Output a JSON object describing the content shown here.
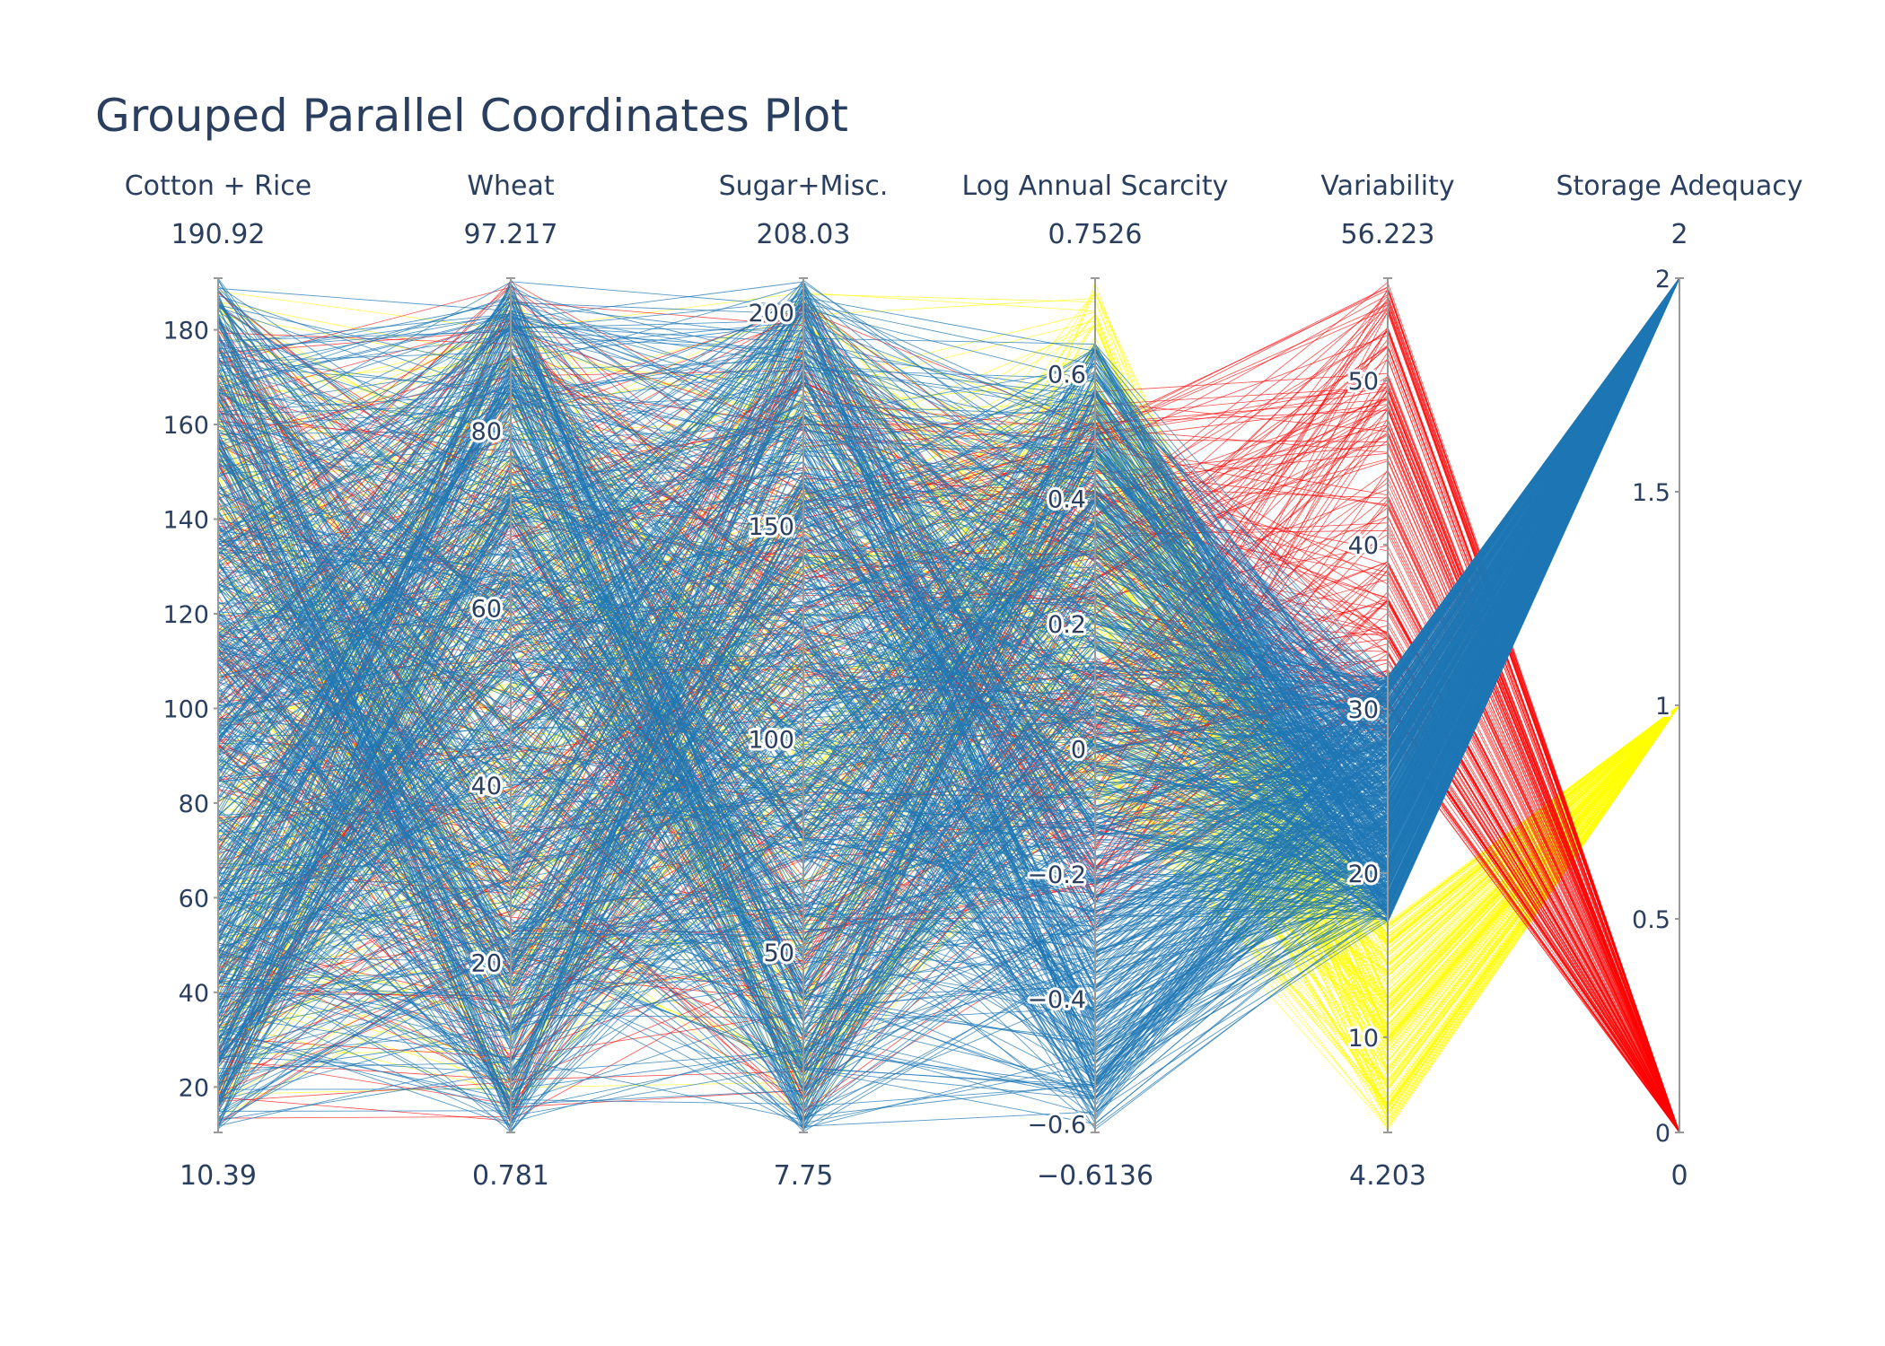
{
  "chart_data": {
    "type": "parallel_coordinates",
    "title": "Grouped Parallel Coordinates Plot",
    "dimensions": [
      {
        "label": "Cotton + Rice",
        "min_label": "10.39",
        "max_label": "190.92",
        "range": [
          10.39,
          190.92
        ],
        "ticks": [
          {
            "v": 20,
            "t": "20"
          },
          {
            "v": 40,
            "t": "40"
          },
          {
            "v": 60,
            "t": "60"
          },
          {
            "v": 80,
            "t": "80"
          },
          {
            "v": 100,
            "t": "100"
          },
          {
            "v": 120,
            "t": "120"
          },
          {
            "v": 140,
            "t": "140"
          },
          {
            "v": 160,
            "t": "160"
          },
          {
            "v": 180,
            "t": "180"
          }
        ]
      },
      {
        "label": "Wheat",
        "min_label": "0.781",
        "max_label": "97.217",
        "range": [
          0.781,
          97.217
        ],
        "ticks": [
          {
            "v": 20,
            "t": "20"
          },
          {
            "v": 40,
            "t": "40"
          },
          {
            "v": 60,
            "t": "60"
          },
          {
            "v": 80,
            "t": "80"
          }
        ]
      },
      {
        "label": "Sugar+Misc.",
        "min_label": "7.75",
        "max_label": "208.03",
        "range": [
          7.75,
          208.03
        ],
        "ticks": [
          {
            "v": 50,
            "t": "50"
          },
          {
            "v": 100,
            "t": "100"
          },
          {
            "v": 150,
            "t": "150"
          },
          {
            "v": 200,
            "t": "200"
          }
        ]
      },
      {
        "label": "Log Annual Scarcity",
        "min_label": "−0.6136",
        "max_label": "0.7526",
        "range": [
          -0.6136,
          0.7526
        ],
        "ticks": [
          {
            "v": -0.6,
            "t": "−0.6"
          },
          {
            "v": -0.4,
            "t": "−0.4"
          },
          {
            "v": -0.2,
            "t": "−0.2"
          },
          {
            "v": 0,
            "t": "0"
          },
          {
            "v": 0.2,
            "t": "0.2"
          },
          {
            "v": 0.4,
            "t": "0.4"
          },
          {
            "v": 0.6,
            "t": "0.6"
          }
        ]
      },
      {
        "label": "Variability",
        "min_label": "4.203",
        "max_label": "56.223",
        "range": [
          4.203,
          56.223
        ],
        "ticks": [
          {
            "v": 10,
            "t": "10"
          },
          {
            "v": 20,
            "t": "20"
          },
          {
            "v": 30,
            "t": "30"
          },
          {
            "v": 40,
            "t": "40"
          },
          {
            "v": 50,
            "t": "50"
          }
        ]
      },
      {
        "label": "Storage Adequacy",
        "min_label": "0",
        "max_label": "2",
        "range": [
          0,
          2
        ],
        "ticks": [
          {
            "v": 0,
            "t": "0"
          },
          {
            "v": 0.5,
            "t": "0.5"
          },
          {
            "v": 1,
            "t": "1"
          },
          {
            "v": 1.5,
            "t": "1.5"
          },
          {
            "v": 2,
            "t": "2"
          }
        ]
      }
    ],
    "groups": [
      {
        "storage_adequacy": 0,
        "color": "#ff0000",
        "line_count": 180,
        "ranges": [
          [
            12,
            190
          ],
          [
            2,
            97
          ],
          [
            10,
            205
          ],
          [
            -0.3,
            0.6
          ],
          [
            28,
            56
          ]
        ]
      },
      {
        "storage_adequacy": 1,
        "color": "#ffff00",
        "line_count": 180,
        "ranges": [
          [
            12,
            190
          ],
          [
            2,
            97
          ],
          [
            10,
            205
          ],
          [
            -0.1,
            0.75
          ],
          [
            4.3,
            17
          ]
        ]
      },
      {
        "storage_adequacy": 2,
        "color": "#1f77b4",
        "line_count": 700,
        "ranges": [
          [
            10.39,
            190.92
          ],
          [
            0.8,
            97.2
          ],
          [
            7.75,
            208
          ],
          [
            -0.61,
            0.65
          ],
          [
            17,
            32
          ]
        ]
      }
    ]
  }
}
